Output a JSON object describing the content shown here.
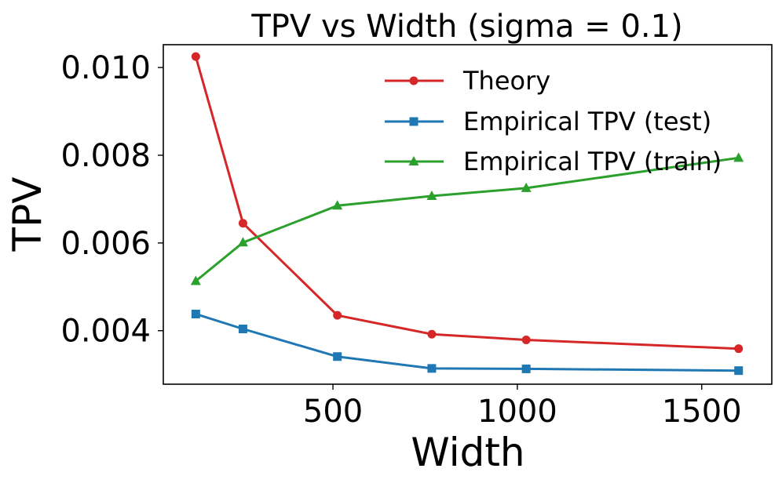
{
  "chart_data": {
    "type": "line",
    "title": "TPV vs Width (sigma = 0.1)",
    "xlabel": "Width",
    "ylabel": "TPV",
    "x": [
      128,
      256,
      512,
      768,
      1024,
      1600
    ],
    "xlim": [
      40,
      1690
    ],
    "ylim": [
      0.00278,
      0.01052
    ],
    "xticks": [
      500,
      1000,
      1500
    ],
    "xtick_labels": [
      "500",
      "1000",
      "1500"
    ],
    "yticks": [
      0.004,
      0.006,
      0.008,
      0.01
    ],
    "ytick_labels": [
      "0.004",
      "0.006",
      "0.008",
      "0.010"
    ],
    "grid": false,
    "legend_position": "top-right",
    "series": [
      {
        "name": "Theory",
        "color": "#d62728",
        "marker": "circle",
        "values": [
          0.01025,
          0.00645,
          0.00435,
          0.00392,
          0.00379,
          0.00359
        ]
      },
      {
        "name": "Empirical TPV (test)",
        "color": "#1f77b4",
        "marker": "square",
        "values": [
          0.00438,
          0.00404,
          0.00341,
          0.00314,
          0.00313,
          0.00309
        ]
      },
      {
        "name": "Empirical TPV (train)",
        "color": "#2ca02c",
        "marker": "triangle",
        "values": [
          0.00513,
          0.00601,
          0.00685,
          0.00707,
          0.00725,
          0.00794
        ]
      }
    ]
  }
}
